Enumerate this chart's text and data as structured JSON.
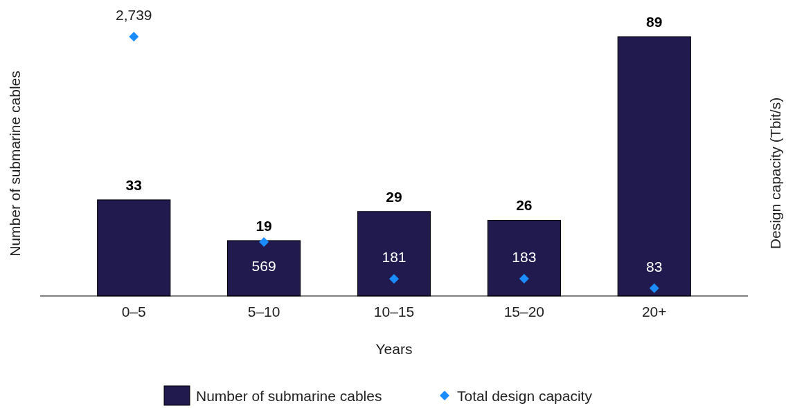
{
  "chart_data": {
    "type": "bar",
    "xlabel": "Years",
    "ylabel": "Number of submarine cables",
    "y2label": "Design capacity (Tbit/s)",
    "categories": [
      "0–5",
      "5–10",
      "10–15",
      "15–20",
      "20+"
    ],
    "series": [
      {
        "name": "Number of submarine cables",
        "color": "#201a4e",
        "values": [
          33,
          19,
          29,
          26,
          89
        ],
        "value_labels": [
          "33",
          "19",
          "29",
          "26",
          "89"
        ]
      },
      {
        "name": "Total design capacity",
        "type": "scatter",
        "axis": "y2",
        "color": "#1a8cff",
        "marker": "diamond",
        "values": [
          2739,
          569,
          181,
          183,
          83
        ],
        "value_labels": [
          "2,739",
          "569",
          "181",
          "183",
          "83"
        ]
      }
    ],
    "legend": "bottom"
  }
}
